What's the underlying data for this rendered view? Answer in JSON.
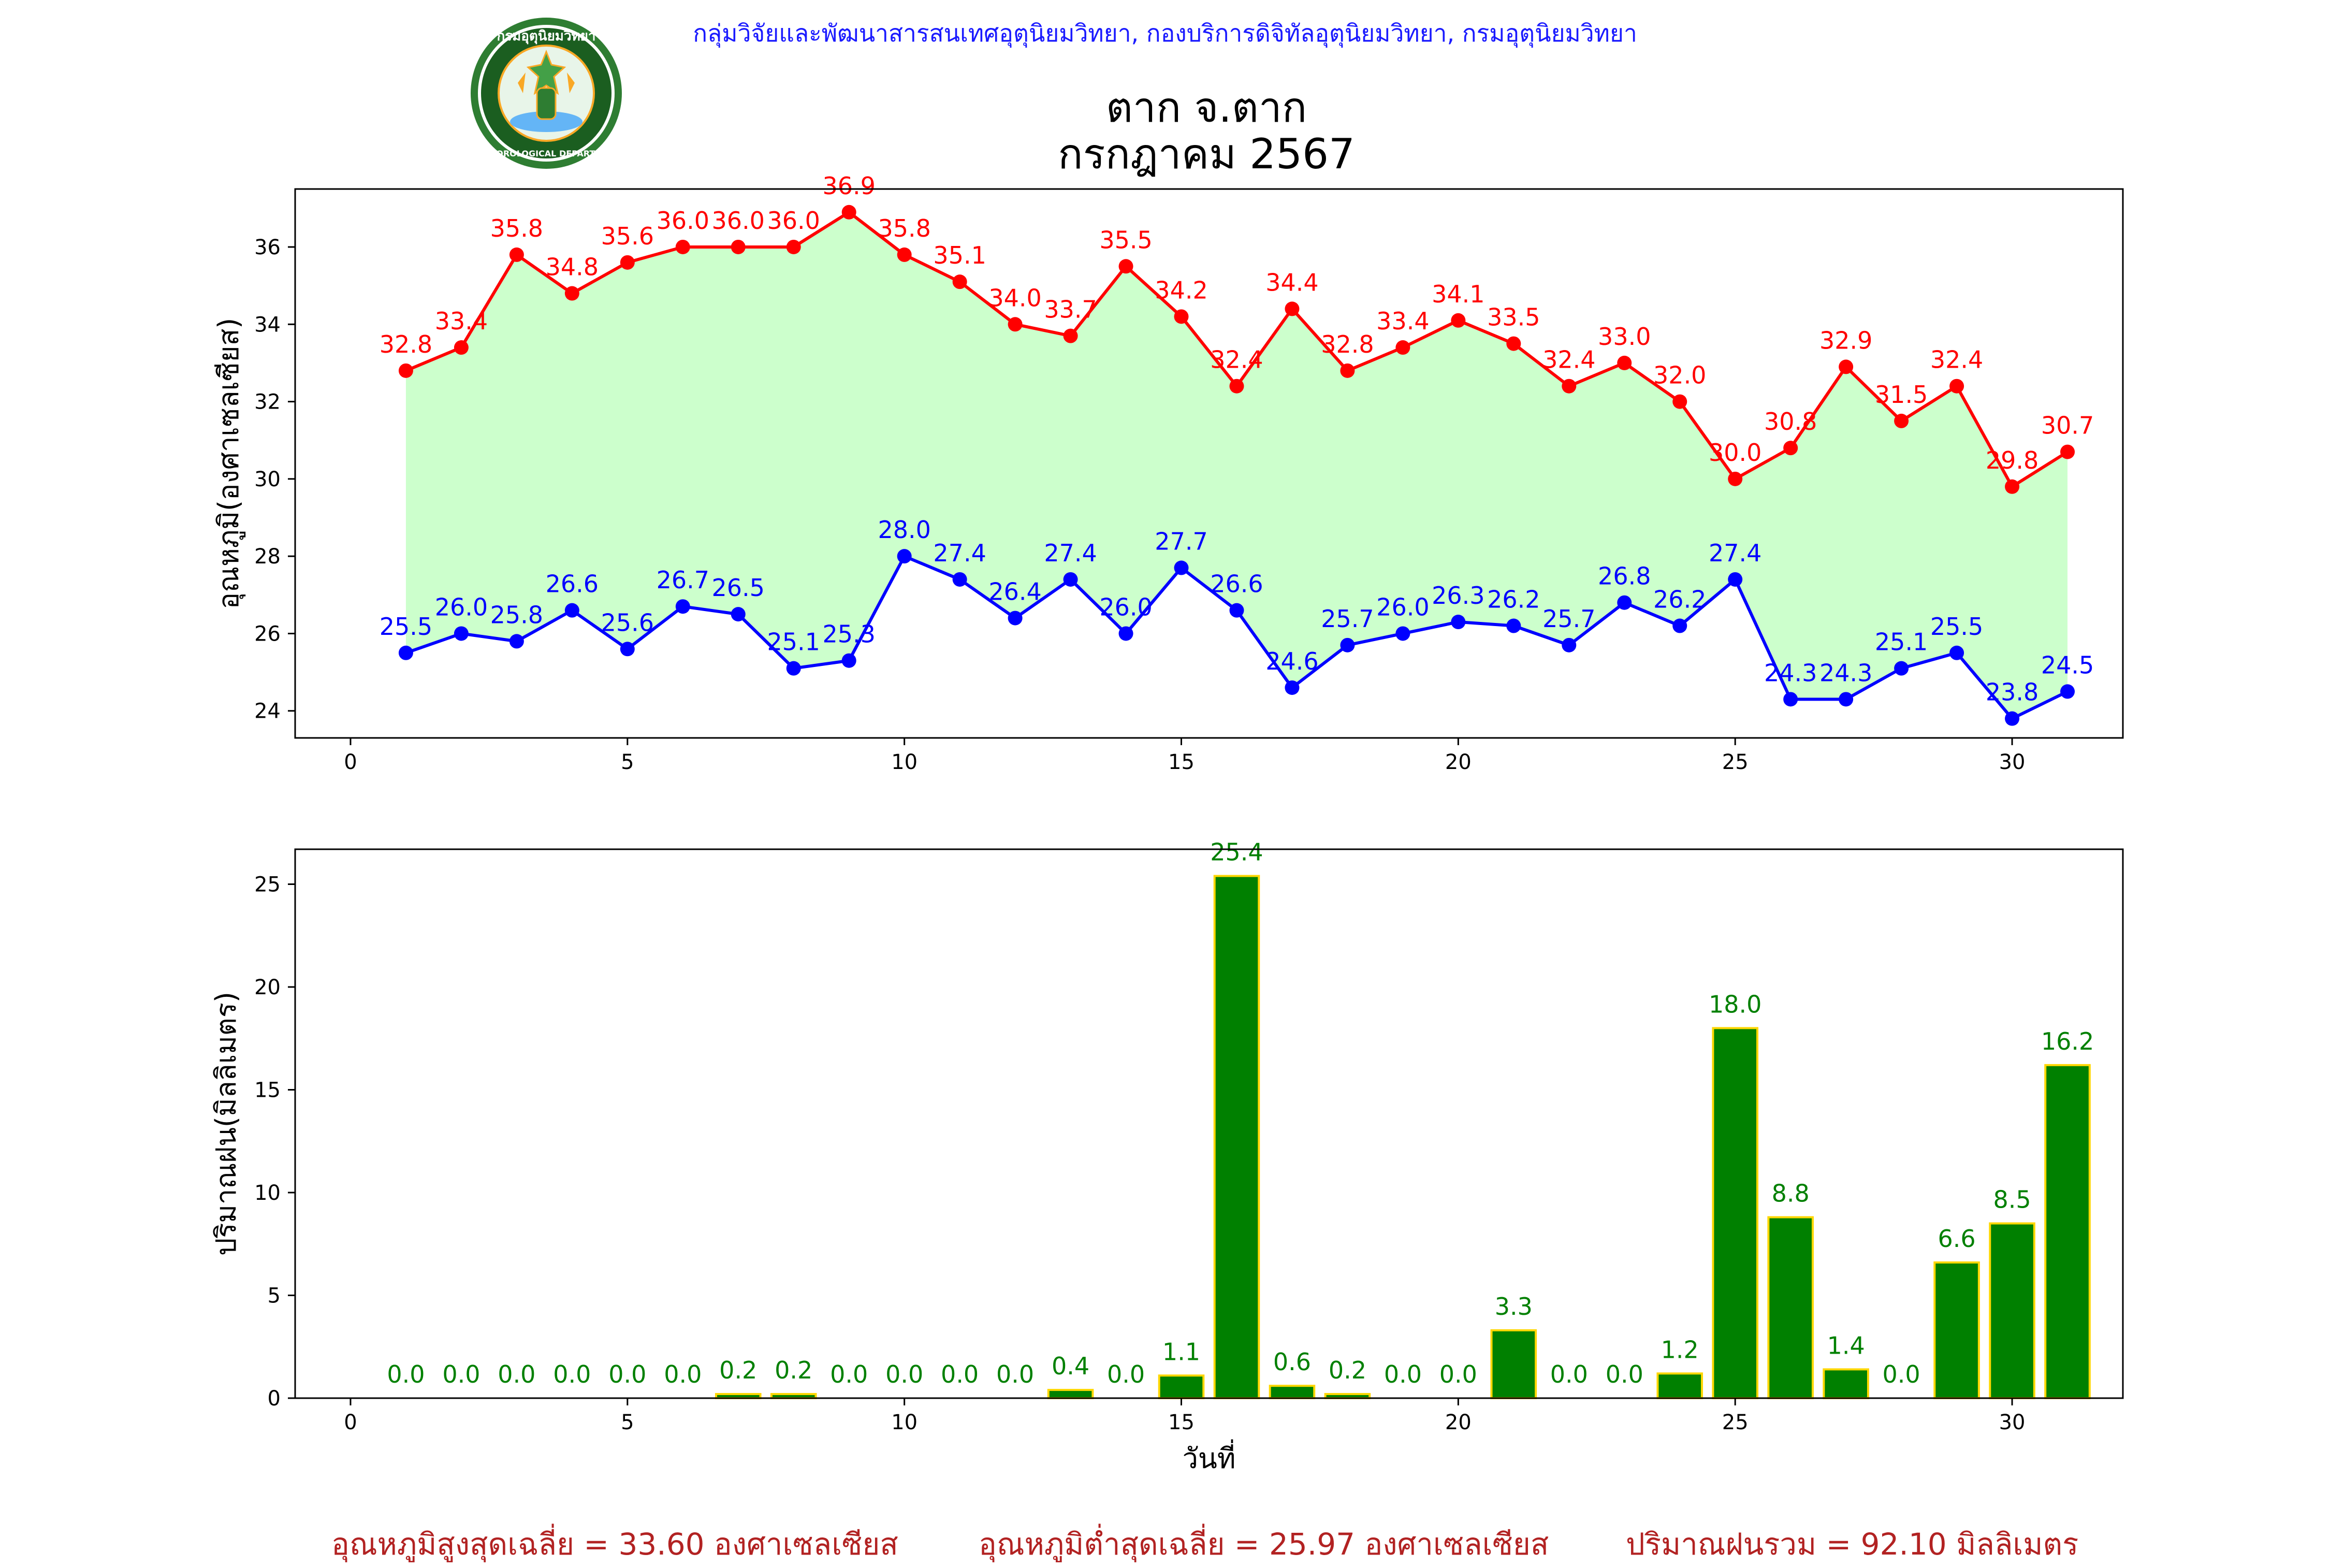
{
  "header": {
    "agency_line": "กลุ่มวิจัยและพัฒนาสารสนเทศอุตุนิยมวิทยา, กองบริการดิจิทัลอุตุนิยมวิทยา, กรมอุตุนิยมวิทยา",
    "logo_name": "meteorological-department-seal",
    "logo_text": "กรมอุตุนิยมวิทยา METEOROLOGICAL DEPARTMENT"
  },
  "colors": {
    "max_line": "#ff0000",
    "min_line": "#0000ff",
    "fill": "#ccffcc",
    "bar_fill": "#008000",
    "bar_edge": "#ffd700",
    "bar_label": "#008000",
    "summary": "#b22222",
    "header": "#1a1aff"
  },
  "chart_data": [
    {
      "type": "line",
      "title": "ตาก จ.ตาก",
      "subtitle": "กรกฎาคม 2567",
      "xlabel": "",
      "ylabel": "อุณหภูมิ(องศาเซลเซียส)",
      "xlim": [
        -1,
        32
      ],
      "ylim": [
        23.3,
        37.5
      ],
      "xticks": [
        0,
        5,
        10,
        15,
        20,
        25,
        30
      ],
      "yticks": [
        24,
        26,
        28,
        30,
        32,
        34,
        36
      ],
      "fill_between_series": true,
      "x": [
        1,
        2,
        3,
        4,
        5,
        6,
        7,
        8,
        9,
        10,
        11,
        12,
        13,
        14,
        15,
        16,
        17,
        18,
        19,
        20,
        21,
        22,
        23,
        24,
        25,
        26,
        27,
        28,
        29,
        30,
        31
      ],
      "series": [
        {
          "key": "max",
          "values": [
            32.8,
            33.4,
            35.8,
            34.8,
            35.6,
            36.0,
            36.0,
            36.0,
            36.9,
            35.8,
            35.1,
            34.0,
            33.7,
            35.5,
            34.2,
            32.4,
            34.4,
            32.8,
            33.4,
            34.1,
            33.5,
            32.4,
            33.0,
            32.0,
            30.0,
            30.8,
            32.9,
            31.5,
            32.4,
            29.8,
            30.7
          ]
        },
        {
          "key": "min",
          "values": [
            25.5,
            26.0,
            25.8,
            26.6,
            25.6,
            26.7,
            26.5,
            25.1,
            25.3,
            28.0,
            27.4,
            26.4,
            27.4,
            26.0,
            27.7,
            26.6,
            24.6,
            25.7,
            26.0,
            26.3,
            26.2,
            25.7,
            26.8,
            26.2,
            27.4,
            24.3,
            24.3,
            25.1,
            25.5,
            23.8,
            24.5
          ]
        }
      ]
    },
    {
      "type": "bar",
      "xlabel": "วันที่",
      "ylabel": "ปริมาณฝน(มิลลิเมตร)",
      "xlim": [
        -1,
        32
      ],
      "ylim": [
        0,
        26.7
      ],
      "xticks": [
        0,
        5,
        10,
        15,
        20,
        25,
        30
      ],
      "yticks": [
        0,
        5,
        10,
        15,
        20,
        25
      ],
      "x": [
        1,
        2,
        3,
        4,
        5,
        6,
        7,
        8,
        9,
        10,
        11,
        12,
        13,
        14,
        15,
        16,
        17,
        18,
        19,
        20,
        21,
        22,
        23,
        24,
        25,
        26,
        27,
        28,
        29,
        30,
        31
      ],
      "values": [
        0.0,
        0.0,
        0.0,
        0.0,
        0.0,
        0.0,
        0.2,
        0.2,
        0.0,
        0.0,
        0.0,
        0.0,
        0.4,
        0.0,
        1.1,
        25.4,
        0.6,
        0.2,
        0.0,
        0.0,
        3.3,
        0.0,
        0.0,
        1.2,
        18.0,
        8.8,
        1.4,
        0.0,
        6.6,
        8.5,
        16.2
      ]
    }
  ],
  "summary": {
    "avg_max": "อุณหภูมิสูงสุดเฉลี่ย = 33.60 องศาเซลเซียส",
    "avg_min": "อุณหภูมิต่ำสุดเฉลี่ย = 25.97 องศาเซลเซียส",
    "total_rain": "ปริมาณฝนรวม = 92.10 มิลลิเมตร"
  }
}
